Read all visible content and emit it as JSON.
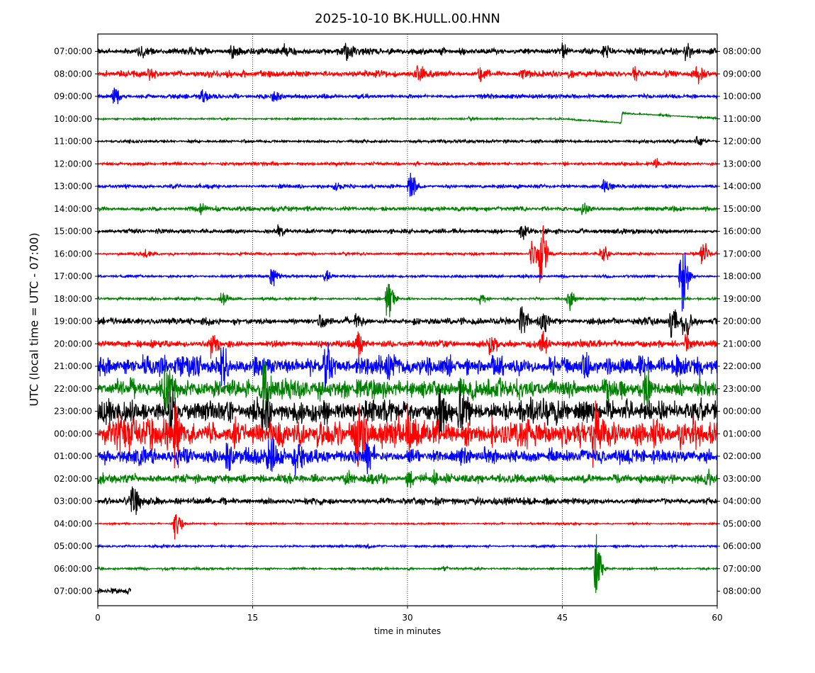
{
  "chart_data": {
    "type": "line",
    "title": "2025-10-10 BK.HULL.00.HNN",
    "xlabel": "time in minutes",
    "ylabel": "UTC (local time = UTC - 07:00)",
    "xlim": [
      0,
      60
    ],
    "xticks": [
      "0",
      "15",
      "30",
      "45",
      "60"
    ],
    "grid": "vertical dotted at 15, 30, 45",
    "colors": [
      "#000000",
      "#ff0000",
      "#0000ff",
      "#008000"
    ],
    "rows": [
      {
        "left": "07:00:00",
        "right": "08:00:00",
        "noise": 0.14,
        "events": [
          [
            4,
            0.3
          ],
          [
            13,
            0.3
          ],
          [
            18,
            0.35
          ],
          [
            24,
            0.3
          ],
          [
            45,
            0.35
          ],
          [
            49,
            0.3
          ],
          [
            57,
            0.4
          ]
        ]
      },
      {
        "left": "08:00:00",
        "right": "09:00:00",
        "noise": 0.14,
        "events": [
          [
            5,
            0.3
          ],
          [
            31,
            0.4
          ],
          [
            37,
            0.35
          ],
          [
            41,
            0.35
          ],
          [
            52,
            0.35
          ],
          [
            58,
            0.45
          ]
        ]
      },
      {
        "left": "09:00:00",
        "right": "10:00:00",
        "noise": 0.1,
        "events": [
          [
            1.5,
            0.45
          ],
          [
            10,
            0.3
          ],
          [
            17,
            0.3
          ]
        ]
      },
      {
        "left": "10:00:00",
        "right": "11:00:00",
        "noise": 0.04,
        "events": [
          [
            36,
            0.12
          ]
        ],
        "drift": [
          [
            0,
            0
          ],
          [
            45,
            0
          ],
          [
            50.7,
            -0.18
          ],
          [
            50.8,
            0.25
          ],
          [
            60,
            0.03
          ]
        ]
      },
      {
        "left": "11:00:00",
        "right": "12:00:00",
        "noise": 0.07,
        "events": [
          [
            58,
            0.2
          ]
        ]
      },
      {
        "left": "12:00:00",
        "right": "13:00:00",
        "noise": 0.07,
        "events": [
          [
            54,
            0.2
          ]
        ]
      },
      {
        "left": "13:00:00",
        "right": "14:00:00",
        "noise": 0.08,
        "events": [
          [
            30.2,
            0.8
          ],
          [
            23,
            0.25
          ],
          [
            49,
            0.3
          ]
        ]
      },
      {
        "left": "14:00:00",
        "right": "15:00:00",
        "noise": 0.1,
        "events": [
          [
            10,
            0.25
          ],
          [
            47,
            0.35
          ]
        ]
      },
      {
        "left": "15:00:00",
        "right": "16:00:00",
        "noise": 0.1,
        "events": [
          [
            17.5,
            0.3
          ],
          [
            41,
            0.4
          ]
        ]
      },
      {
        "left": "16:00:00",
        "right": "17:00:00",
        "noise": 0.06,
        "events": [
          [
            4.5,
            0.3
          ],
          [
            42,
            0.9
          ],
          [
            42.8,
            1.8
          ],
          [
            48.8,
            0.6
          ],
          [
            58.5,
            0.8
          ]
        ]
      },
      {
        "left": "17:00:00",
        "right": "18:00:00",
        "noise": 0.06,
        "events": [
          [
            16.8,
            0.6
          ],
          [
            22,
            0.3
          ],
          [
            56.5,
            2.5
          ]
        ]
      },
      {
        "left": "18:00:00",
        "right": "19:00:00",
        "noise": 0.06,
        "events": [
          [
            12,
            0.3
          ],
          [
            28,
            1.2
          ],
          [
            37,
            0.3
          ],
          [
            45.5,
            0.7
          ]
        ]
      },
      {
        "left": "19:00:00",
        "right": "20:00:00",
        "noise": 0.15,
        "events": [
          [
            21.5,
            0.5
          ],
          [
            25,
            0.4
          ],
          [
            41,
            0.8
          ],
          [
            43,
            0.6
          ],
          [
            55.5,
            0.7
          ],
          [
            56.7,
            0.9
          ]
        ]
      },
      {
        "left": "20:00:00",
        "right": "21:00:00",
        "noise": 0.15,
        "events": [
          [
            11,
            0.7
          ],
          [
            25,
            0.7
          ],
          [
            38,
            0.7
          ],
          [
            43,
            0.6
          ],
          [
            57,
            0.6
          ]
        ]
      },
      {
        "left": "21:00:00",
        "right": "22:00:00",
        "noise": 0.4,
        "events": [
          [
            12,
            0.8
          ],
          [
            22,
            0.9
          ],
          [
            28,
            0.5
          ],
          [
            47,
            0.6
          ],
          [
            56,
            0.6
          ]
        ]
      },
      {
        "left": "22:00:00",
        "right": "23:00:00",
        "noise": 0.4,
        "events": [
          [
            6.5,
            1.0
          ],
          [
            16,
            1.2
          ],
          [
            49,
            0.8
          ],
          [
            53,
            0.9
          ]
        ]
      },
      {
        "left": "23:00:00",
        "right": "00:00:00",
        "noise": 0.5,
        "events": [
          [
            7,
            1.0
          ],
          [
            16,
            1.3
          ],
          [
            33,
            1.2
          ],
          [
            35,
            1.1
          ]
        ]
      },
      {
        "left": "00:00:00",
        "right": "01:00:00",
        "noise": 0.6,
        "events": [
          [
            2,
            1.2
          ],
          [
            7.5,
            1.8
          ],
          [
            25,
            1.2
          ],
          [
            30,
            1.0
          ],
          [
            48,
            1.0
          ]
        ]
      },
      {
        "left": "01:00:00",
        "right": "02:00:00",
        "noise": 0.35,
        "events": [
          [
            4,
            0.6
          ],
          [
            12.5,
            0.7
          ],
          [
            16.5,
            0.9
          ],
          [
            19,
            0.7
          ],
          [
            26,
            0.6
          ]
        ]
      },
      {
        "left": "02:00:00",
        "right": "03:00:00",
        "noise": 0.2,
        "events": [
          [
            24,
            0.4
          ],
          [
            30,
            0.3
          ],
          [
            32.5,
            0.4
          ],
          [
            59,
            0.3
          ]
        ]
      },
      {
        "left": "03:00:00",
        "right": "04:00:00",
        "noise": 0.15,
        "events": [
          [
            3.3,
            1.3
          ]
        ]
      },
      {
        "left": "04:00:00",
        "right": "05:00:00",
        "noise": 0.04,
        "events": [
          [
            7.5,
            0.9
          ]
        ]
      },
      {
        "left": "05:00:00",
        "right": "06:00:00",
        "noise": 0.05,
        "events": [
          [
            26,
            0.1
          ]
        ]
      },
      {
        "left": "06:00:00",
        "right": "07:00:00",
        "noise": 0.05,
        "events": [
          [
            33.5,
            0.1
          ],
          [
            48.2,
            1.8
          ]
        ]
      },
      {
        "left": "07:00:00",
        "right": "08:00:00",
        "noise": 0.15,
        "events": [],
        "end": 3.2
      }
    ]
  }
}
